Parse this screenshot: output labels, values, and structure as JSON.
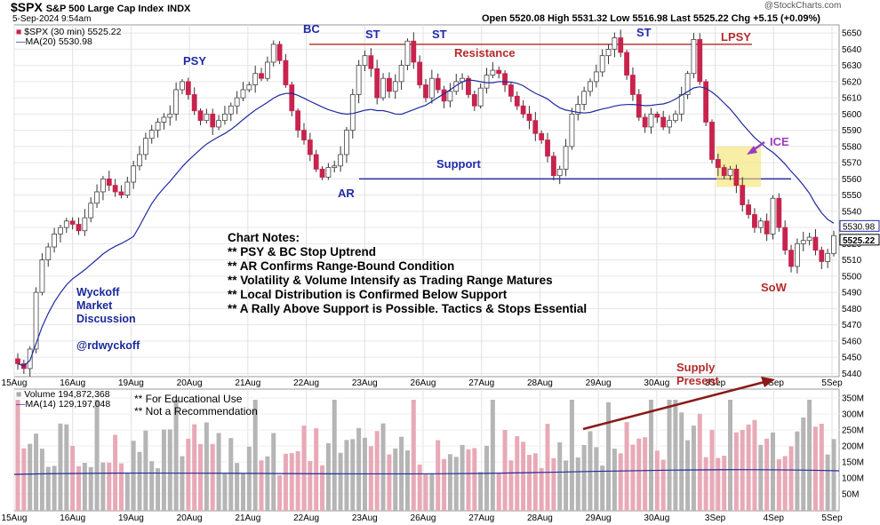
{
  "header": {
    "symbol": "$SPX",
    "name": "S&P 500 Large Cap Index",
    "exchange": "INDX",
    "datetime": "5-Sep-2024 9:54am",
    "watermark": "@StockCharts.com",
    "ohlc_text": "Open 5520.08  High 5531.32  Low 5516.98  Last 5525.22  Chg +5.15 (+0.09%)",
    "chg_value": "+5.15 (+0.09%)"
  },
  "legend": {
    "price_label": "$SPX (30 min) 5525.22",
    "ma_label": "MA(20) 5530.98",
    "volume_label": "Volume 194,872,368",
    "vol_ma_label": "MA(14) 129,197,048"
  },
  "notes": {
    "title": "Chart Notes:",
    "lines": [
      "** PSY & BC Stop Uptrend",
      "** AR Confirms Range-Bound Condition",
      "** Volatility & Volume Intensify as Trading Range Matures",
      "** Local Distribution is Confirmed Below Support",
      "** A Rally Above Support is Possible. Tactics & Stops Essential"
    ],
    "edu": "** For Educational Use",
    "rec": "** Not a Recommendation"
  },
  "wyckoff": {
    "line1": "Wyckoff",
    "line2": "Market",
    "line3": "Discussion",
    "handle": "@rdwyckoff"
  },
  "annotations": {
    "psy": "PSY",
    "bc": "BC",
    "st": "ST",
    "ar": "AR",
    "lpsy": "LPSY",
    "ice": "ICE",
    "sow": "SoW",
    "resistance": "Resistance",
    "support": "Support",
    "supply1": "Supply",
    "supply2": "Present"
  },
  "colors": {
    "up": "#a9a9a9",
    "down": "#c8234d",
    "ma": "#1f2a9e",
    "resistance": "#b83b3b",
    "support": "#2a2aa0",
    "vol_up": "#b5b5b5",
    "vol_down": "#e8a9b6",
    "ice_box": "#f3e36a",
    "arrow": "#8b1a1a",
    "ice_arrow": "#9a3cc4"
  },
  "chart_data": {
    "type": "candlestick",
    "title": "$SPX S&P 500 Large Cap Index",
    "interval": "30 min",
    "x_labels": [
      "15Aug",
      "16Aug",
      "19Aug",
      "20Aug",
      "21Aug",
      "22Aug",
      "23Aug",
      "26Aug",
      "27Aug",
      "28Aug",
      "29Aug",
      "30Aug",
      "3Sep",
      "4Sep",
      "5Sep"
    ],
    "y_ticks": [
      5440,
      5450,
      5460,
      5470,
      5480,
      5490,
      5500,
      5510,
      5520,
      5530,
      5540,
      5550,
      5560,
      5570,
      5580,
      5590,
      5600,
      5610,
      5620,
      5630,
      5640,
      5650
    ],
    "ylim": [
      5438,
      5655
    ],
    "price_path": [
      5446,
      5443,
      5455,
      5490,
      5510,
      5518,
      5526,
      5530,
      5534,
      5532,
      5528,
      5536,
      5545,
      5552,
      5560,
      5556,
      5552,
      5550,
      5558,
      5568,
      5575,
      5585,
      5590,
      5595,
      5598,
      5600,
      5615,
      5620,
      5612,
      5602,
      5596,
      5600,
      5592,
      5596,
      5600,
      5605,
      5610,
      5615,
      5618,
      5625,
      5622,
      5632,
      5643,
      5633,
      5618,
      5602,
      5590,
      5584,
      5575,
      5566,
      5561,
      5567,
      5568,
      5575,
      5590,
      5612,
      5630,
      5636,
      5628,
      5610,
      5622,
      5614,
      5620,
      5630,
      5645,
      5632,
      5618,
      5610,
      5622,
      5615,
      5608,
      5614,
      5620,
      5622,
      5612,
      5605,
      5616,
      5624,
      5627,
      5625,
      5618,
      5611,
      5605,
      5600,
      5596,
      5588,
      5584,
      5574,
      5562,
      5566,
      5580,
      5600,
      5606,
      5614,
      5620,
      5626,
      5636,
      5640,
      5647,
      5638,
      5624,
      5612,
      5598,
      5592,
      5600,
      5598,
      5592,
      5596,
      5600,
      5612,
      5625,
      5646,
      5620,
      5595,
      5572,
      5567,
      5562,
      5566,
      5556,
      5544,
      5538,
      5530,
      5534,
      5526,
      5548,
      5530,
      5516,
      5506,
      5520,
      5522,
      5524,
      5516,
      5509,
      5514,
      5525
    ],
    "resistance": 5643,
    "support": 5560,
    "volume_ma_level": 129197048,
    "volume_ticks": [
      "350M",
      "300M",
      "250M",
      "200M",
      "150M",
      "100M",
      "50M"
    ],
    "last_price": 5525.22,
    "last_ma": 5530.98
  }
}
